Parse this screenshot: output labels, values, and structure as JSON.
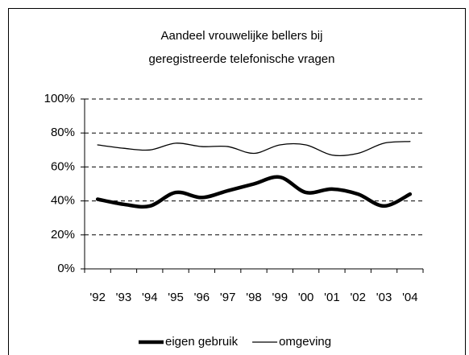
{
  "chart_data": {
    "type": "line",
    "title": [
      "Aandeel vrouwelijke bellers bij",
      "geregistreerde telefonische vragen"
    ],
    "categories": [
      "'92",
      "'93",
      "'94",
      "'95",
      "'96",
      "'97",
      "'98",
      "'99",
      "'00",
      "'01",
      "'02",
      "'03",
      "'04"
    ],
    "series": [
      {
        "name": "eigen gebruik",
        "color": "#000000",
        "values": [
          41,
          38,
          37,
          45,
          42,
          46,
          50,
          54,
          45,
          47,
          44,
          37,
          44
        ]
      },
      {
        "name": "omgeving",
        "color": "#000000",
        "values": [
          73,
          71,
          70,
          74,
          72,
          72,
          68,
          73,
          73,
          67,
          68,
          74,
          75
        ]
      }
    ],
    "ylim": [
      0,
      100
    ],
    "yticks": [
      {
        "value": 0,
        "label": "0%"
      },
      {
        "value": 20,
        "label": "20%"
      },
      {
        "value": 40,
        "label": "40%"
      },
      {
        "value": 60,
        "label": "60%"
      },
      {
        "value": 80,
        "label": "80%"
      },
      {
        "value": 100,
        "label": "100%"
      }
    ],
    "grid": true,
    "legend": "bottom"
  }
}
